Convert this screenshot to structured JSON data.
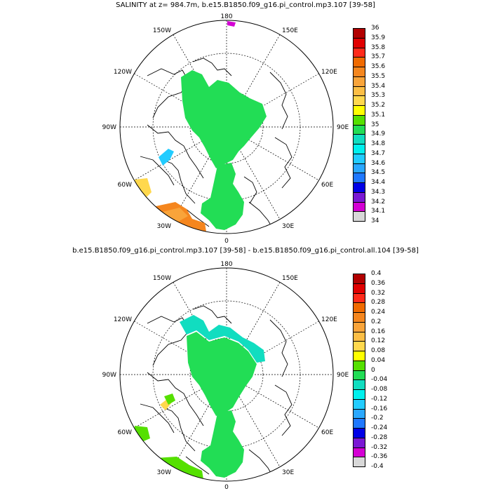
{
  "panels": [
    {
      "title": "SALINITY at z= 984.7m, b.e15.B1850.f09_g16.pi_control.mp3.107 [39-58]",
      "colorbar_labels": [
        "36",
        "35.9",
        "35.8",
        "35.7",
        "35.6",
        "35.5",
        "35.4",
        "35.3",
        "35.2",
        "35.1",
        "35",
        "34.9",
        "34.8",
        "34.7",
        "34.6",
        "34.5",
        "34.4",
        "34.3",
        "34.2",
        "34.1",
        "34"
      ]
    },
    {
      "title": "b.e15.B1850.f09_g16.pi_control.mp3.107 [39-58] - b.e15.B1850.f09_g16.pi_control.all.104 [39-58]",
      "colorbar_labels": [
        "0.4",
        "0.36",
        "0.32",
        "0.28",
        "0.24",
        "0.2",
        "0.16",
        "0.12",
        "0.08",
        "0.04",
        "0",
        "-0.04",
        "-0.08",
        "-0.12",
        "-0.16",
        "-0.2",
        "-0.24",
        "-0.28",
        "-0.32",
        "-0.36",
        "-0.4"
      ]
    }
  ],
  "longitude_labels": {
    "top": "180",
    "bottom": "0",
    "left": "90W",
    "right": "90E",
    "upper_left": "150W",
    "upper_right": "150E",
    "mid_upper_left": "120W",
    "mid_upper_right": "120E",
    "mid_lower_left": "60W",
    "mid_lower_right": "60E",
    "lower_left": "30W",
    "lower_right": "30E"
  },
  "colorbar_colors": [
    "#b20000",
    "#e00000",
    "#ff2a1a",
    "#f06a00",
    "#f5861e",
    "#f9a43a",
    "#fcbe45",
    "#ffd84d",
    "#ffff00",
    "#55e000",
    "#22dd55",
    "#11ddc0",
    "#00f0ee",
    "#22ccff",
    "#2aa8ff",
    "#1f78ff",
    "#0000e6",
    "#7a18d4",
    "#d400d4",
    "#d8d8d8",
    "#6e6e6e"
  ]
}
